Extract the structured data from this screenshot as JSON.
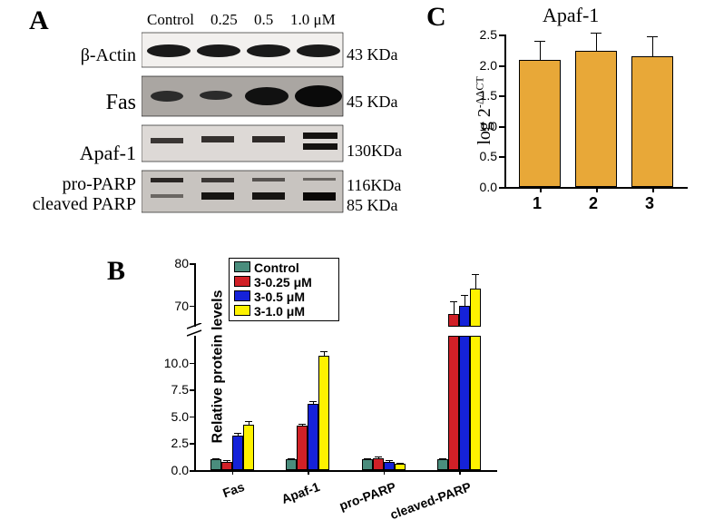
{
  "panelLabels": {
    "A": "A",
    "B": "B",
    "C": "C"
  },
  "westernBlot": {
    "laneHeaders": [
      "Control",
      "0.25",
      "0.5",
      "1.0 μM"
    ],
    "rows": [
      {
        "label": "β-Actin",
        "mw": "43 KDa",
        "mwTop": 58
      },
      {
        "label": "Fas",
        "mw": "45 KDa",
        "mwTop": 110
      },
      {
        "label": "Apaf-1",
        "mw": "130KDa",
        "mwTop": 162
      },
      {
        "label": "pro-PARP",
        "mw": "116KDa",
        "mwTop": 200
      },
      {
        "label": "cleaved PARP",
        "mw": "85 KDa",
        "mwTop": 222
      }
    ]
  },
  "chartB": {
    "type": "bar-grouped-broken-y",
    "ylabel": "Relative protein levels",
    "legend": [
      {
        "label": "Control",
        "color": "#4a8d7d"
      },
      {
        "label": "3-0.25 μM",
        "color": "#d12027"
      },
      {
        "label": "3-0.5 μM",
        "color": "#1522d9"
      },
      {
        "label": "3-1.0 μM",
        "color": "#fef200"
      }
    ],
    "categories": [
      "Fas",
      "Apaf-1",
      "pro-PARP",
      "cleaved-PARP"
    ],
    "lowerYlim": [
      0,
      12.5
    ],
    "lowerTicks": [
      0.0,
      2.5,
      5.0,
      7.5,
      10.0
    ],
    "upperYlim": [
      65,
      80
    ],
    "upperTicks": [
      70,
      80
    ],
    "values": {
      "ctrl": [
        1.0,
        1.0,
        1.0,
        1.0
      ],
      "d025": [
        0.8,
        4.1,
        1.1,
        68
      ],
      "d05": [
        3.2,
        6.2,
        0.8,
        70
      ],
      "d10": [
        4.2,
        10.6,
        0.6,
        74
      ]
    },
    "errors": {
      "ctrl": [
        0.1,
        0.1,
        0.1,
        0.1
      ],
      "d025": [
        0.15,
        0.2,
        0.15,
        3.0
      ],
      "d05": [
        0.3,
        0.25,
        0.12,
        2.5
      ],
      "d10": [
        0.4,
        0.5,
        0.1,
        3.5
      ]
    },
    "colors": {
      "ctrl": "#4a8d7d",
      "d025": "#d12027",
      "d05": "#1522d9",
      "d10": "#fef200"
    },
    "bg": "#ffffff",
    "axis_color": "#000000",
    "barWidthPx": 12
  },
  "chartC": {
    "type": "bar",
    "title": "Apaf-1",
    "ylabel": "log 2^-ΔΔCT",
    "ylabelRaw": "log 2",
    "ylabelSup": "-ΔΔCT",
    "categories": [
      "1",
      "2",
      "3"
    ],
    "values": [
      2.08,
      2.23,
      2.14
    ],
    "errors": [
      0.31,
      0.3,
      0.33
    ],
    "color": "#e8a838",
    "ylim": [
      0.0,
      2.5
    ],
    "yticks": [
      "0.0",
      "0.5",
      "1.0",
      "1.5",
      "2.0",
      "2.5"
    ],
    "bg": "#ffffff",
    "axis_color": "#000000",
    "barWidthPx": 46
  }
}
